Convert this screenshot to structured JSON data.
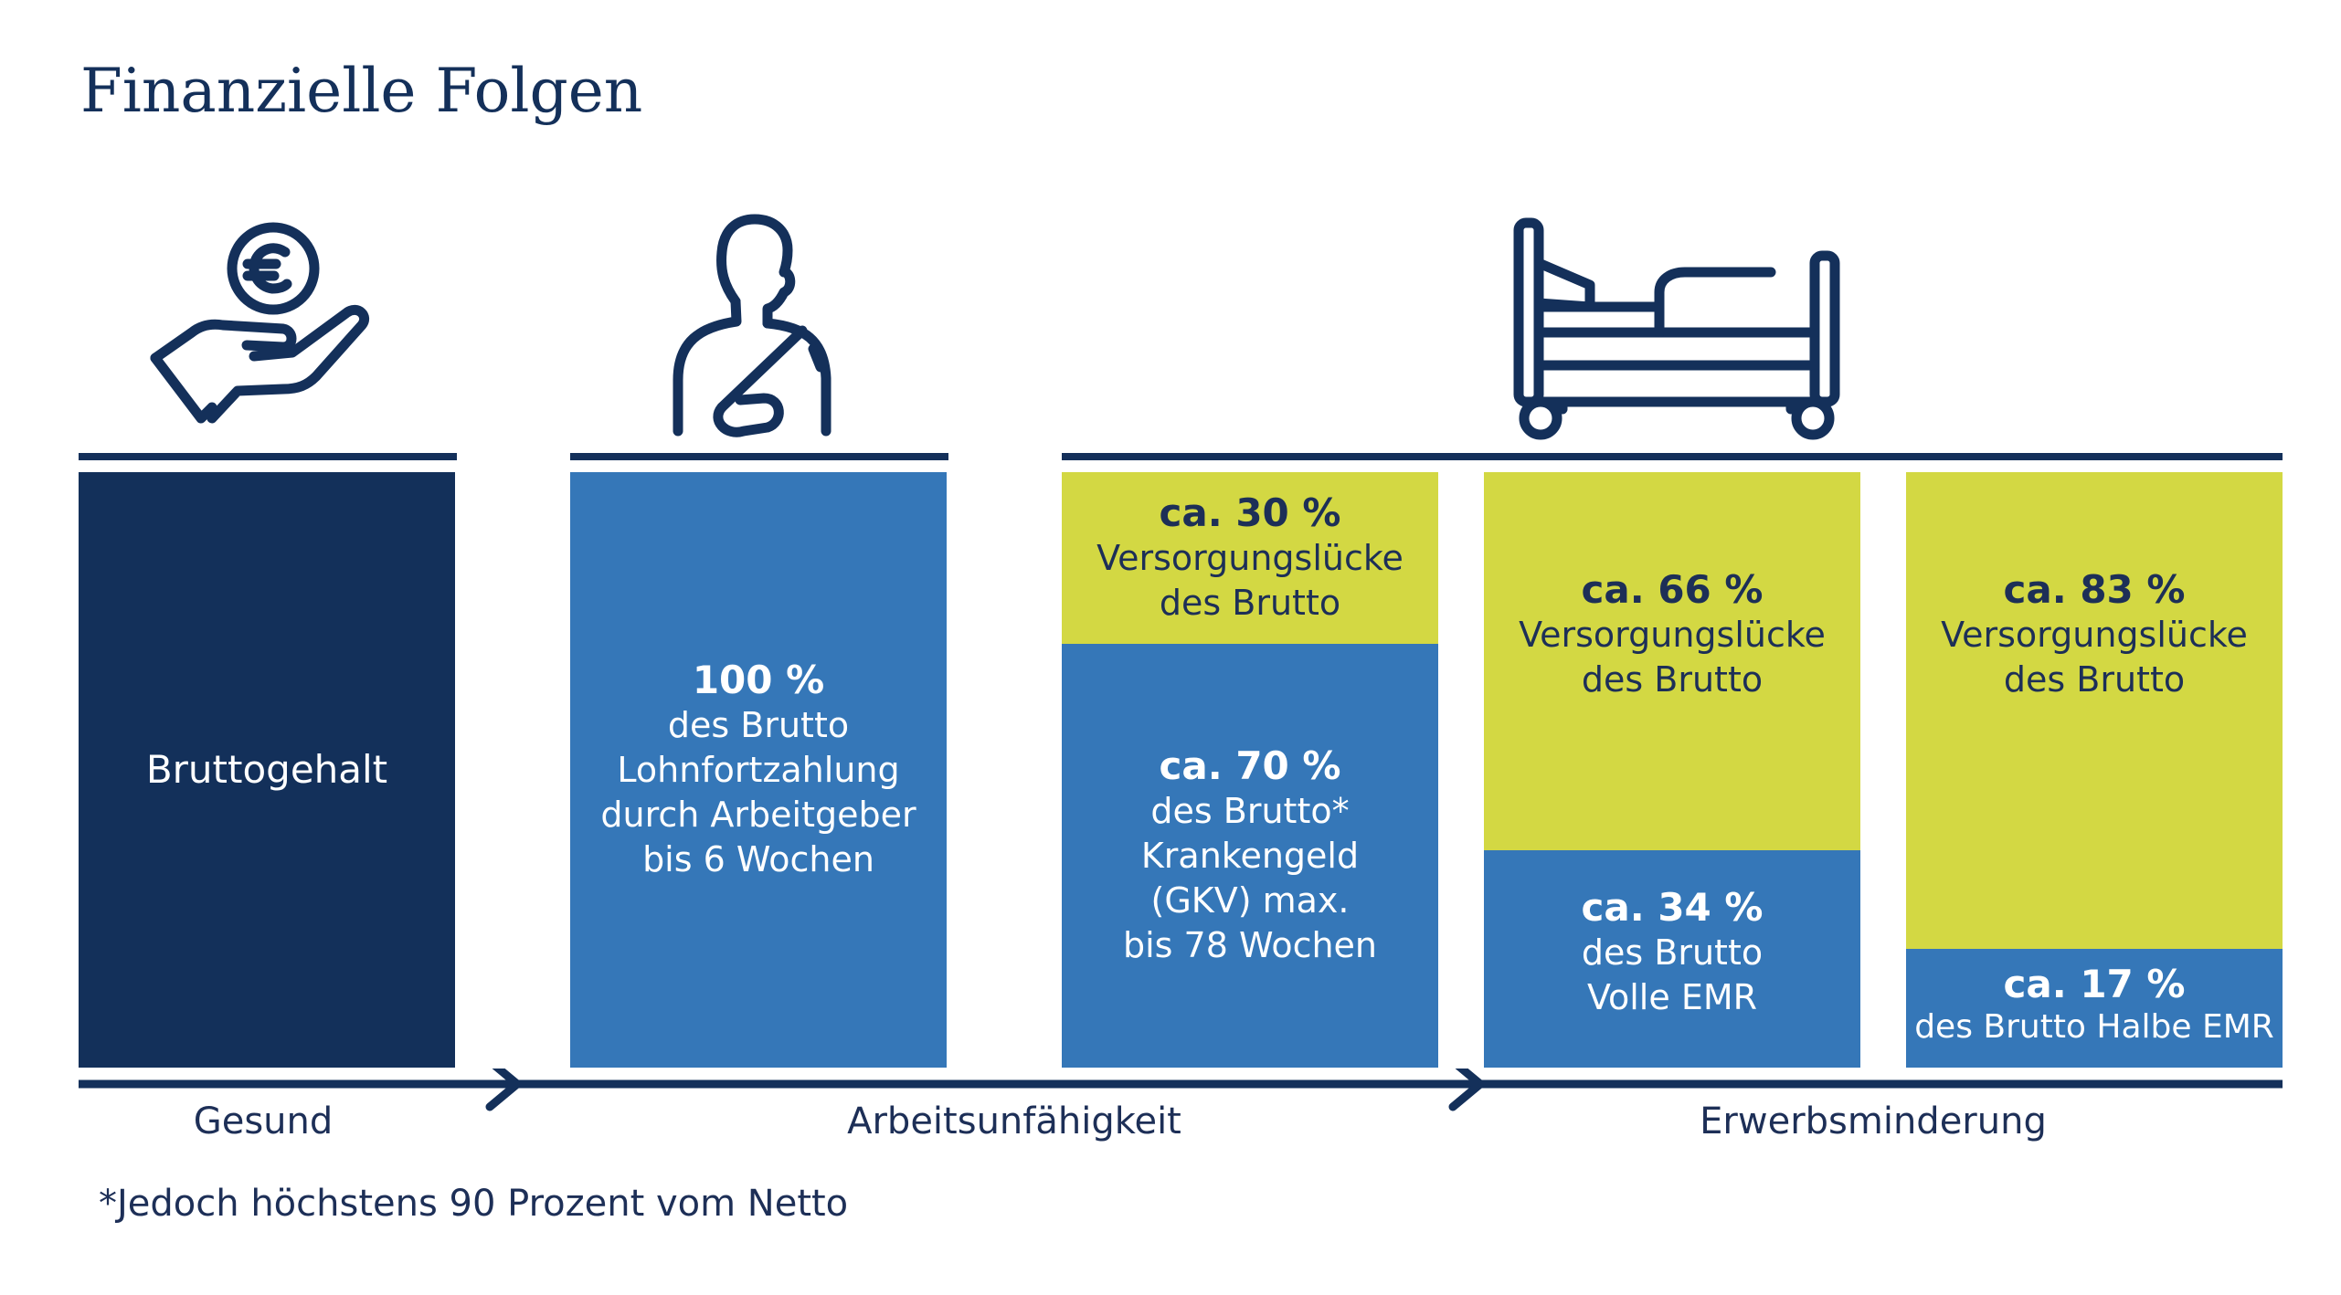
{
  "page": {
    "title": "Finanzielle Folgen"
  },
  "icons": {
    "first": "hand-euro-coin-icon",
    "second": "arm-sling-person-icon",
    "third": "hospital-bed-icon",
    "color": "#14305a"
  },
  "colors": {
    "navy": "#13305a",
    "blue": "#3577b8",
    "lime": "#d3d843",
    "text": "#1d2f57"
  },
  "columns": [
    {
      "id": "gesund",
      "segments": [
        {
          "type": "navy",
          "share": 100,
          "label": "Bruttogehalt"
        }
      ]
    },
    {
      "id": "lohnfortzahlung",
      "segments": [
        {
          "type": "blue",
          "share": 100,
          "percent": "100 %",
          "lines": [
            "des Brutto",
            "Lohnfortzahlung",
            "durch Arbeitgeber",
            "bis 6 Wochen"
          ]
        }
      ]
    },
    {
      "id": "krankengeld",
      "segments": [
        {
          "type": "lime",
          "share": 30,
          "percent": "ca. 30 %",
          "lines": [
            "Versorgungslücke",
            "des Brutto"
          ]
        },
        {
          "type": "blue",
          "share": 70,
          "percent": "ca. 70 %",
          "lines": [
            "des Brutto*",
            "Krankengeld",
            "(GKV) max.",
            "bis 78 Wochen"
          ]
        }
      ]
    },
    {
      "id": "volle-emr",
      "segments": [
        {
          "type": "lime",
          "share": 66,
          "percent": "ca. 66 %",
          "lines": [
            "Versorgungslücke",
            "des Brutto"
          ]
        },
        {
          "type": "blue",
          "share": 34,
          "percent": "ca. 34 %",
          "lines": [
            "des Brutto",
            "Volle EMR"
          ]
        }
      ]
    },
    {
      "id": "halbe-emr",
      "segments": [
        {
          "type": "lime",
          "share": 83,
          "percent": "ca. 83 %",
          "lines": [
            "Versorgungslücke",
            "des Brutto"
          ]
        },
        {
          "type": "blue",
          "share": 17,
          "percent": "ca. 17 %",
          "lines": [
            "des Brutto Halbe EMR"
          ]
        }
      ]
    }
  ],
  "timeline": {
    "phases": [
      {
        "label": "Gesund"
      },
      {
        "label": "Arbeitsunfähigkeit"
      },
      {
        "label": "Erwerbsminderung"
      }
    ]
  },
  "footnote": "*Jedoch höchstens 90 Prozent vom Netto"
}
